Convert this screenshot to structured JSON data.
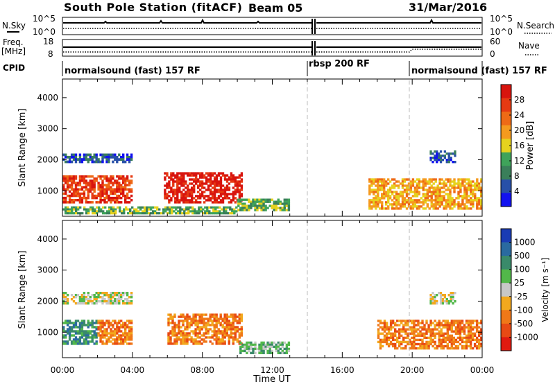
{
  "header": {
    "station": "South Pole Station (fitACF)",
    "beam": "Beam 05",
    "date": "31/Mar/2016"
  },
  "status_panels": {
    "nsky_label": "N.Sky",
    "nsearch_label": "N.Search",
    "freq_label_1": "Freq.",
    "freq_label_2": "[MHz]",
    "nave_label": "Nave",
    "cpid_label": "CPID",
    "noise_ticks": [
      "10^5",
      "10^0"
    ],
    "freq_ticks": [
      "18",
      "8"
    ],
    "nave_ticks": [
      "60",
      "0"
    ],
    "cpid_segments": [
      {
        "label": "normalsound (fast) 157 RF",
        "start_hour": 0,
        "end_hour": 14
      },
      {
        "label": "rbsp 200 RF",
        "start_hour": 14,
        "end_hour": 20
      },
      {
        "label": "normalsound (fast) 157 RF",
        "start_hour": 20,
        "end_hour": 24
      }
    ]
  },
  "axes": {
    "y_label": "Slant Range [km]",
    "x_label": "Time UT",
    "x_ticks": [
      "00:00",
      "04:00",
      "08:00",
      "12:00",
      "16:00",
      "20:00",
      "00:00"
    ],
    "y_ticks": [
      "1000",
      "2000",
      "3000",
      "4000"
    ]
  },
  "power_colorbar": {
    "label": "Power [dB]",
    "ticks": [
      "4",
      "8",
      "12",
      "16",
      "20",
      "24",
      "28"
    ],
    "colors": [
      "#1212f0",
      "#2850a8",
      "#3a7f5a",
      "#3fa35a",
      "#e6d21e",
      "#f59a1e",
      "#ee6a16",
      "#e63a12",
      "#d8140e"
    ]
  },
  "velocity_colorbar": {
    "label": "Velocity [m s⁻¹]",
    "ticks": [
      "1000",
      "500",
      "100",
      "25",
      "-25",
      "-100",
      "-500",
      "-1000"
    ],
    "colors": [
      "#1a3cb4",
      "#2a6aa0",
      "#3a8a6a",
      "#52b84a",
      "#c8c8c8",
      "#f2a81e",
      "#f07818",
      "#e84a14",
      "#e01a10"
    ]
  },
  "chart_data": [
    {
      "type": "heatmap",
      "quantity": "Power",
      "x_range_hours": [
        0,
        24
      ],
      "y_range_km": [
        180,
        4600
      ],
      "regions": [
        {
          "t0": 0.0,
          "t1": 4.0,
          "r0": 600,
          "r1": 1500,
          "level": 7
        },
        {
          "t0": 5.8,
          "t1": 10.3,
          "r0": 600,
          "r1": 1600,
          "level": 8
        },
        {
          "t0": 0.0,
          "t1": 4.0,
          "r0": 1900,
          "r1": 2200,
          "level": 1
        },
        {
          "t0": 0.0,
          "t1": 10.0,
          "r0": 250,
          "r1": 500,
          "level": 3
        },
        {
          "t0": 10.0,
          "t1": 13.0,
          "r0": 350,
          "r1": 750,
          "level": 3
        },
        {
          "t0": 17.5,
          "t1": 24.0,
          "r0": 400,
          "r1": 1400,
          "level": 5
        },
        {
          "t0": 21.0,
          "t1": 22.5,
          "r0": 1900,
          "r1": 2300,
          "level": 1
        }
      ]
    },
    {
      "type": "heatmap",
      "quantity": "Velocity",
      "x_range_hours": [
        0,
        24
      ],
      "y_range_km": [
        180,
        4600
      ],
      "regions": [
        {
          "t0": 0.0,
          "t1": 2.0,
          "r0": 600,
          "r1": 1400,
          "level": 2
        },
        {
          "t0": 2.0,
          "t1": 4.0,
          "r0": 600,
          "r1": 1400,
          "level": 6
        },
        {
          "t0": 6.0,
          "t1": 10.3,
          "r0": 600,
          "r1": 1600,
          "level": 6
        },
        {
          "t0": 0.0,
          "t1": 4.0,
          "r0": 1900,
          "r1": 2300,
          "level": 4
        },
        {
          "t0": 10.0,
          "t1": 13.0,
          "r0": 300,
          "r1": 700,
          "level": 3
        },
        {
          "t0": 18.0,
          "t1": 24.0,
          "r0": 450,
          "r1": 1400,
          "level": 6
        },
        {
          "t0": 21.0,
          "t1": 22.5,
          "r0": 1900,
          "r1": 2300,
          "level": 4
        }
      ]
    }
  ]
}
